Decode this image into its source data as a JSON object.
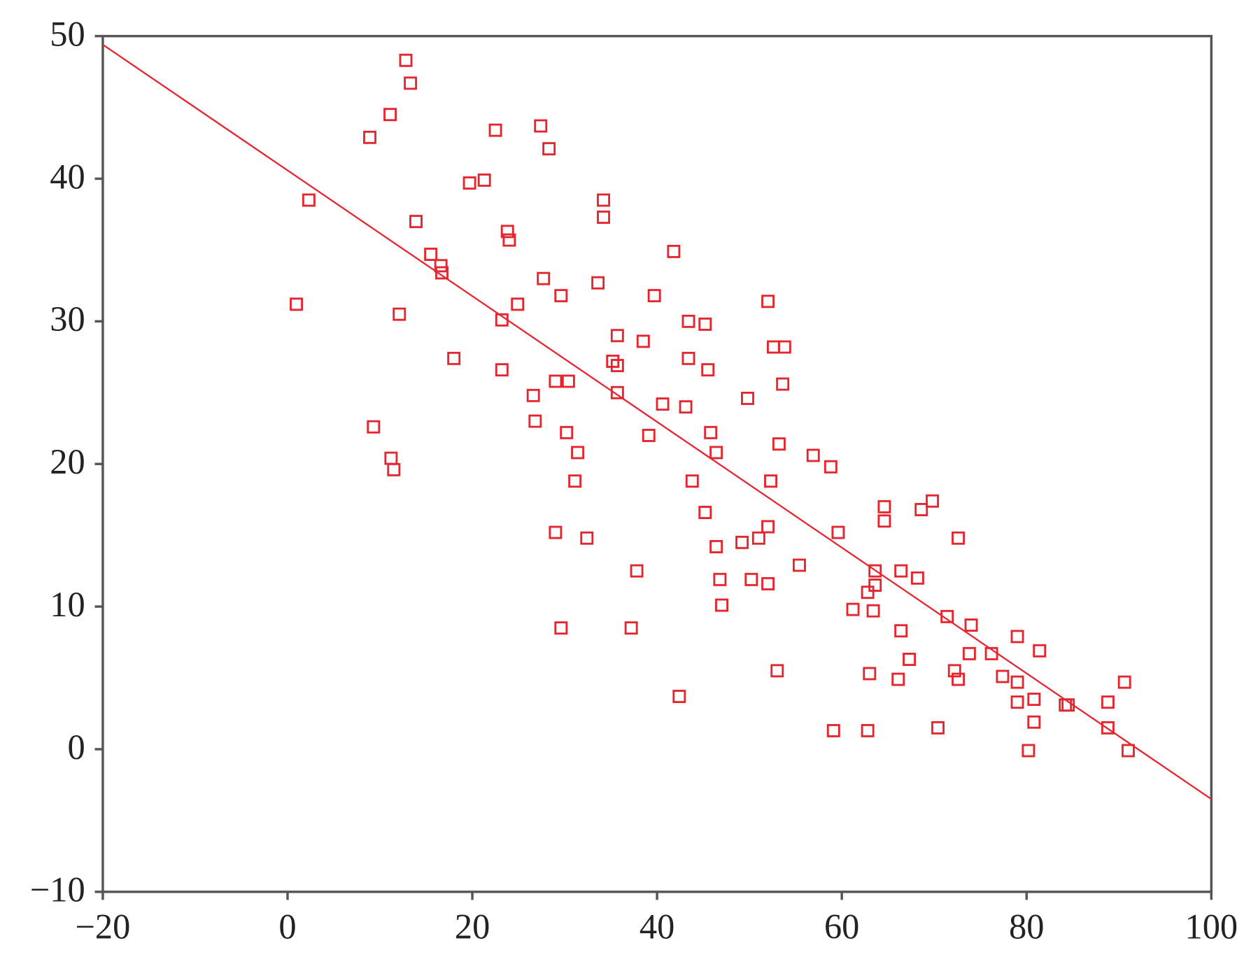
{
  "chart_data": {
    "type": "scatter",
    "x": [
      0.95,
      2.3,
      8.9,
      11.1,
      12.8,
      13.3,
      13.9,
      9.3,
      11.2,
      11.5,
      12.1,
      15.5,
      16.6,
      16.7,
      18.0,
      19.7,
      21.3,
      22.5,
      23.2,
      23.2,
      23.8,
      24.0,
      24.9,
      26.6,
      26.8,
      27.4,
      28.3,
      27.7,
      29.0,
      30.4,
      29.6,
      30.2,
      31.4,
      31.1,
      29.0,
      32.4,
      29.6,
      33.6,
      34.2,
      34.2,
      35.2,
      35.7,
      35.7,
      35.7,
      38.5,
      39.1,
      39.7,
      40.6,
      41.8,
      37.8,
      37.2,
      42.4,
      43.1,
      43.4,
      43.4,
      43.8,
      45.2,
      45.5,
      45.8,
      46.4,
      45.2,
      46.4,
      46.8,
      47.0,
      49.8,
      49.2,
      51.0,
      50.2,
      52.0,
      52.0,
      52.0,
      52.6,
      53.8,
      53.6,
      53.2,
      52.3,
      53.0,
      55.4,
      56.9,
      58.8,
      59.6,
      59.1,
      62.8,
      61.2,
      62.8,
      63.0,
      63.4,
      63.6,
      63.6,
      64.6,
      64.6,
      66.4,
      66.4,
      67.3,
      66.1,
      68.2,
      68.6,
      69.8,
      70.4,
      71.4,
      72.6,
      72.2,
      72.6,
      74.0,
      73.8,
      76.2,
      77.4,
      79.0,
      79.0,
      79.0,
      81.4,
      80.8,
      80.8,
      80.2,
      84.2,
      84.5,
      88.8,
      88.8,
      90.6,
      91.0
    ],
    "values": [
      31.2,
      38.5,
      42.9,
      44.5,
      48.3,
      46.7,
      37.0,
      22.6,
      20.4,
      19.6,
      30.5,
      34.7,
      33.9,
      33.4,
      27.4,
      39.7,
      39.9,
      43.4,
      30.1,
      26.6,
      36.3,
      35.7,
      31.2,
      24.8,
      23.0,
      43.7,
      42.1,
      33.0,
      25.8,
      25.8,
      31.8,
      22.2,
      20.8,
      18.8,
      15.2,
      14.8,
      8.5,
      32.7,
      38.5,
      37.3,
      27.2,
      26.9,
      29.0,
      25.0,
      28.6,
      22.0,
      31.8,
      24.2,
      34.9,
      12.5,
      8.5,
      3.7,
      24.0,
      30.0,
      27.4,
      18.8,
      29.8,
      26.6,
      22.2,
      20.8,
      16.6,
      14.2,
      11.9,
      10.1,
      24.6,
      14.5,
      14.8,
      11.9,
      15.6,
      11.6,
      31.4,
      28.2,
      28.2,
      25.6,
      21.4,
      18.8,
      5.5,
      12.9,
      20.6,
      19.8,
      15.2,
      1.3,
      1.3,
      9.8,
      11.0,
      5.3,
      9.7,
      12.5,
      11.5,
      17.0,
      16.0,
      12.5,
      8.3,
      6.3,
      4.9,
      12.0,
      16.8,
      17.4,
      1.5,
      9.3,
      14.8,
      5.5,
      4.9,
      8.7,
      6.7,
      6.7,
      5.1,
      7.9,
      4.7,
      3.3,
      6.9,
      3.5,
      1.9,
      -0.1,
      3.1,
      3.1,
      3.3,
      1.5,
      4.7,
      -0.1
    ],
    "color": "#e5262e",
    "fit_line": {
      "x": [
        -20,
        100
      ],
      "y": [
        49.4,
        -3.5
      ]
    },
    "xlim": [
      -20,
      100
    ],
    "xticks": [
      {
        "value": -20,
        "label": "−20"
      },
      0,
      20,
      40,
      60,
      80,
      100
    ],
    "ylim": [
      -10,
      50
    ],
    "yticks": [
      {
        "value": -10,
        "label": "−10"
      },
      0,
      10,
      20,
      30,
      40,
      50
    ]
  }
}
